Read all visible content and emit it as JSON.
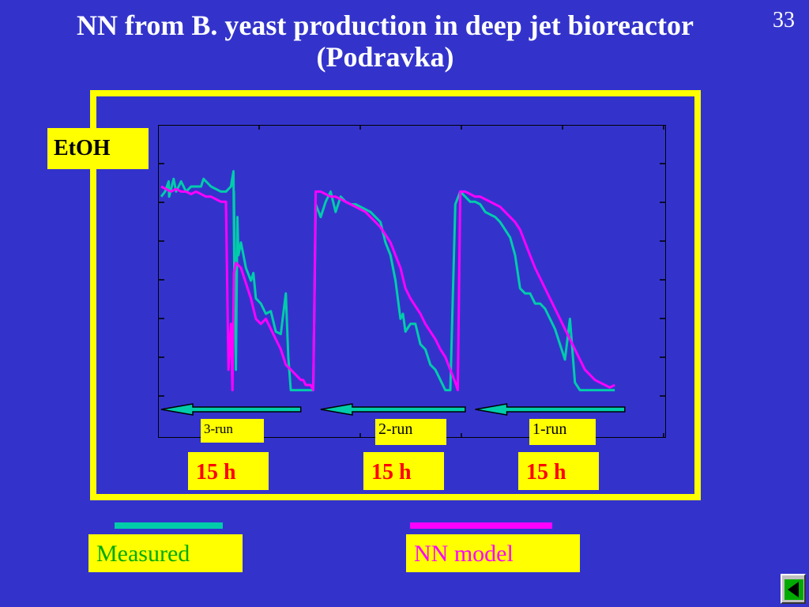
{
  "slide": {
    "title_line1": "NN from B. yeast production in deep jet bioreactor",
    "title_line2": "(Podravka)",
    "page_number": "33"
  },
  "labels": {
    "etoh": "EtOH",
    "runs": [
      "3-run",
      "2-run",
      "1-run"
    ],
    "durations": [
      "15 h",
      "15 h",
      "15 h"
    ]
  },
  "legend": {
    "measured": "Measured",
    "nn_model": "NN model"
  },
  "colors": {
    "background": "#3333cc",
    "frame": "#ffff00",
    "measured": "#00ccaa",
    "nn_model": "#ff00ff",
    "arrow": "#00ccaa",
    "duration_text": "#ff0000"
  },
  "icons": {
    "nav_button": "back-arrow-icon"
  },
  "chart_data": {
    "type": "line",
    "title": "",
    "xlabel": "",
    "ylabel": "EtOH",
    "xlim": [
      0,
      100
    ],
    "ylim": [
      0,
      100
    ],
    "grid": false,
    "legend_placement": "bottom",
    "series": [
      {
        "name": "Measured",
        "color": "#00ccaa",
        "x": [
          0,
          0.8,
          1.5,
          1.6,
          2.5,
          3,
          4,
          5,
          6,
          8,
          8.5,
          10,
          12,
          13,
          14,
          14.5,
          14.7,
          14.6,
          15,
          15.3,
          15.5,
          16,
          17,
          18,
          18.5,
          19,
          20,
          21,
          22,
          23,
          24,
          25,
          25.5,
          26,
          26.5,
          27,
          28,
          29,
          30,
          30.5,
          31,
          32,
          33,
          34,
          35,
          36,
          37,
          38,
          39,
          40,
          41,
          42,
          43,
          44,
          45,
          46,
          47,
          48,
          48.5,
          49,
          50,
          51,
          52,
          53,
          54,
          55,
          56,
          57,
          58,
          59,
          60,
          61,
          62,
          63,
          64,
          65,
          66,
          67,
          68,
          69,
          70,
          71,
          72,
          73,
          74,
          75,
          76,
          77,
          78,
          79,
          80,
          81,
          82,
          83,
          84,
          85,
          86,
          87,
          88,
          89,
          90,
          91
        ],
        "y": [
          78,
          80,
          84,
          78,
          85,
          80,
          84,
          80,
          82,
          82,
          85,
          82,
          80,
          80,
          82,
          88,
          40,
          80,
          10,
          70,
          55,
          60,
          50,
          45,
          48,
          38,
          36,
          32,
          33,
          25,
          24,
          40,
          15,
          2,
          2,
          2,
          2,
          2,
          2,
          2,
          75,
          70,
          76,
          80,
          72,
          78,
          76,
          75,
          75,
          74,
          73,
          72,
          70,
          68,
          60,
          55,
          45,
          30,
          32,
          25,
          28,
          28,
          20,
          18,
          12,
          10,
          6,
          2,
          2,
          75,
          80,
          78,
          76,
          76,
          75,
          72,
          71,
          70,
          68,
          65,
          62,
          55,
          42,
          40,
          40,
          36,
          36,
          34,
          30,
          26,
          20,
          14,
          30,
          5,
          2,
          2,
          2,
          2,
          2,
          2,
          2,
          2
        ],
        "_note_y": "y values on 0-100 scale (axis unlabeled)"
      },
      {
        "name": "NN model",
        "color": "#ff00ff",
        "x": [
          0,
          1,
          2,
          3,
          4,
          5,
          6,
          7,
          8,
          9,
          10,
          11,
          12,
          13,
          13.5,
          14,
          14.3,
          14.6,
          15,
          16,
          17,
          18,
          19,
          20,
          21,
          22,
          23,
          24,
          25,
          26,
          27,
          28,
          28.5,
          29,
          30,
          30.5,
          31,
          32,
          33,
          34,
          35,
          36,
          37,
          38,
          39,
          40,
          41,
          42,
          43,
          44,
          45,
          46,
          47,
          48,
          49,
          50,
          51,
          52,
          53,
          54,
          55,
          56,
          57,
          58,
          59,
          59.5,
          60,
          61,
          62,
          63,
          64,
          65,
          66,
          67,
          68,
          69,
          70,
          71,
          72,
          73,
          74,
          75,
          76,
          77,
          78,
          79,
          80,
          81,
          82,
          83,
          84,
          85,
          86,
          87,
          88,
          89,
          90,
          91
        ],
        "y": [
          82,
          81,
          80,
          81,
          80,
          80,
          79,
          80,
          79,
          78,
          78,
          77,
          76,
          76,
          10,
          28,
          2,
          48,
          52,
          50,
          44,
          38,
          30,
          28,
          30,
          26,
          22,
          18,
          12,
          10,
          8,
          6,
          6,
          4,
          4,
          2,
          80,
          80,
          79,
          78,
          78,
          77,
          76,
          75,
          74,
          73,
          72,
          70,
          68,
          66,
          63,
          60,
          55,
          50,
          42,
          38,
          35,
          32,
          28,
          25,
          22,
          18,
          15,
          10,
          5,
          2,
          80,
          80,
          79,
          78,
          78,
          77,
          76,
          75,
          74,
          72,
          70,
          68,
          65,
          60,
          55,
          50,
          46,
          42,
          38,
          34,
          30,
          26,
          22,
          18,
          14,
          10,
          8,
          6,
          5,
          4,
          3,
          4
        ]
      }
    ],
    "annotations": [
      "3-run",
      "2-run",
      "1-run",
      "15 h",
      "15 h",
      "15 h"
    ]
  }
}
